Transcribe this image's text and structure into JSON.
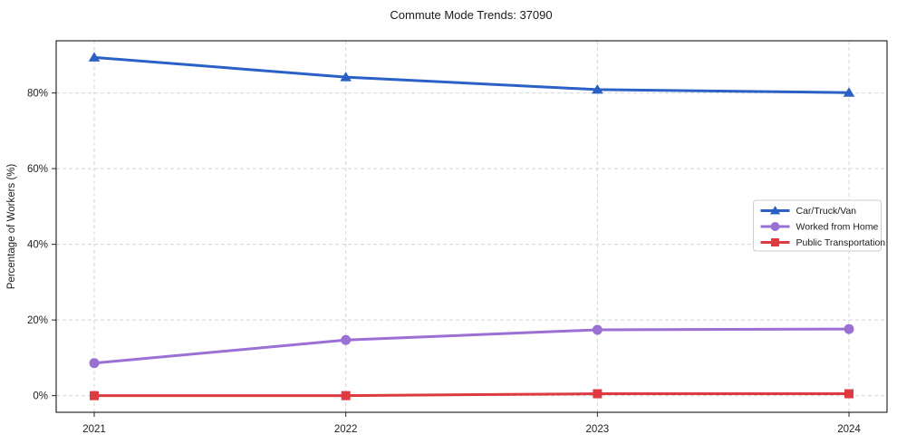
{
  "figure": {
    "background": "#ffffff",
    "plot_border_color": "#000000",
    "grid_color": "#d4d4d4",
    "tick_color": "#2a2a2a",
    "legend_border_color": "#cccccc",
    "legend_background": "#ffffff"
  },
  "chart_data": {
    "type": "line",
    "title": "Commute Mode Trends: 37090",
    "xlabel": "",
    "ylabel": "Percentage of Workers (%)",
    "categories": [
      "2021",
      "2022",
      "2023",
      "2024"
    ],
    "series": [
      {
        "name": "Car/Truck/Van",
        "color": "#2b60c6",
        "marker": "triangle",
        "values": [
          89.4,
          84.2,
          80.9,
          80.1
        ]
      },
      {
        "name": "Worked from Home",
        "color": "#9a70d4",
        "marker": "circle",
        "values": [
          8.6,
          14.7,
          17.4,
          17.6
        ]
      },
      {
        "name": "Public Transportation",
        "color": "#df3a42",
        "marker": "square",
        "values": [
          0.0,
          0.0,
          0.5,
          0.5
        ]
      }
    ],
    "yticks": [
      0,
      20,
      40,
      60,
      80
    ],
    "ytick_labels": [
      "0%",
      "20%",
      "40%",
      "60%",
      "80%"
    ],
    "ylim": [
      -4.4,
      93.8
    ],
    "grid": true,
    "grid_style": "dashed",
    "legend_position": "center right"
  }
}
